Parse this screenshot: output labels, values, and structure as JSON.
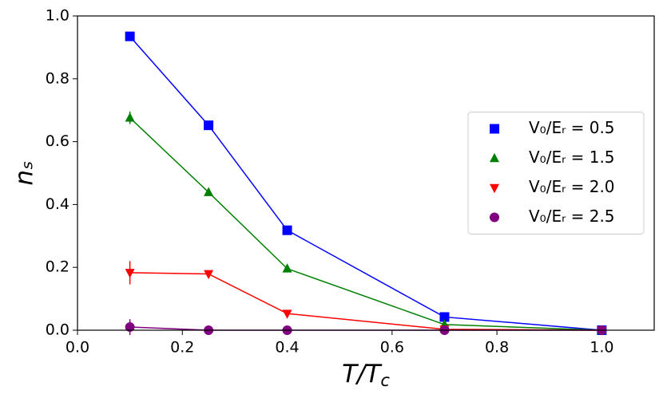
{
  "chart_data": {
    "type": "line",
    "x_label": [
      "T/T",
      "c"
    ],
    "y_label": "nₛ",
    "x": [
      0.1,
      0.25,
      0.4,
      0.7,
      1.0
    ],
    "series": [
      {
        "name": "V₀/Eᵣ = 0.5",
        "color": "#0000ff",
        "marker": "square",
        "values": [
          0.935,
          0.652,
          0.318,
          0.042,
          0.0
        ],
        "errors": [
          0.005,
          0.005,
          0.005,
          0.003,
          0.0
        ]
      },
      {
        "name": "V₀/Eᵣ = 1.5",
        "color": "#008000",
        "marker": "triangle-up",
        "values": [
          0.676,
          0.439,
          0.196,
          0.018,
          0.0
        ],
        "errors": [
          0.02,
          0.005,
          0.005,
          0.003,
          0.0
        ]
      },
      {
        "name": "V₀/Eᵣ = 2.0",
        "color": "#ff0000",
        "marker": "triangle-down",
        "values": [
          0.183,
          0.179,
          0.053,
          0.003,
          0.0
        ],
        "errors": [
          0.037,
          0.005,
          0.005,
          0.002,
          0.0
        ]
      },
      {
        "name": "V₀/Eᵣ = 2.5",
        "color": "#800080",
        "marker": "circle",
        "values": [
          0.01,
          0.0,
          0.0,
          0.0,
          0.0
        ],
        "errors": [
          0.025,
          0.002,
          0.002,
          0.001,
          0.0
        ]
      }
    ],
    "xlim": [
      0,
      1.1
    ],
    "ylim": [
      0,
      1
    ],
    "xticks": [
      {
        "value": 0,
        "label": "0.0"
      },
      0.2,
      0.4,
      0.6,
      0.8,
      {
        "value": 1,
        "label": "1.0"
      }
    ],
    "yticks": [
      {
        "value": 0,
        "label": "0.0"
      },
      0.2,
      0.4,
      0.6,
      0.8,
      {
        "value": 1,
        "label": "1.0"
      }
    ],
    "legend": "center right",
    "grid": false
  }
}
